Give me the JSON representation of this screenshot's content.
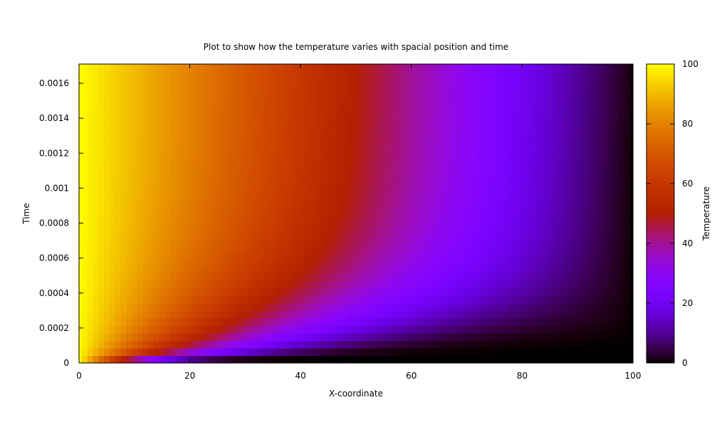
{
  "chart_data": {
    "type": "heatmap",
    "title": "Plot to show how the temperature varies with spacial position and time",
    "xlabel": "X-coordinate",
    "ylabel": "Time",
    "colorbar_label": "Temperature",
    "xlim": [
      0,
      100
    ],
    "ylim": [
      0,
      0.00171
    ],
    "clim": [
      0,
      100
    ],
    "x_ticks": [
      "0",
      "20",
      "40",
      "60",
      "80",
      "100"
    ],
    "x_tick_values": [
      0,
      20,
      40,
      60,
      80,
      100
    ],
    "y_ticks": [
      "0",
      "0.0002",
      "0.0004",
      "0.0006",
      "0.0008",
      "0.001",
      "0.0012",
      "0.0014",
      "0.0016"
    ],
    "y_tick_values": [
      0,
      0.0002,
      0.0004,
      0.0006,
      0.0008,
      0.001,
      0.0012,
      0.0014,
      0.0016
    ],
    "colorbar_ticks": [
      "0",
      "20",
      "40",
      "60",
      "80",
      "100"
    ],
    "colorbar_tick_values": [
      0,
      20,
      40,
      60,
      80,
      100
    ],
    "colormap": "gnuplot (black-purple-red-yellow)",
    "boundary_conditions": {
      "left_x0": 100,
      "right_x100": 0,
      "initial_t0": 0
    },
    "grid": false,
    "legend": "none"
  }
}
